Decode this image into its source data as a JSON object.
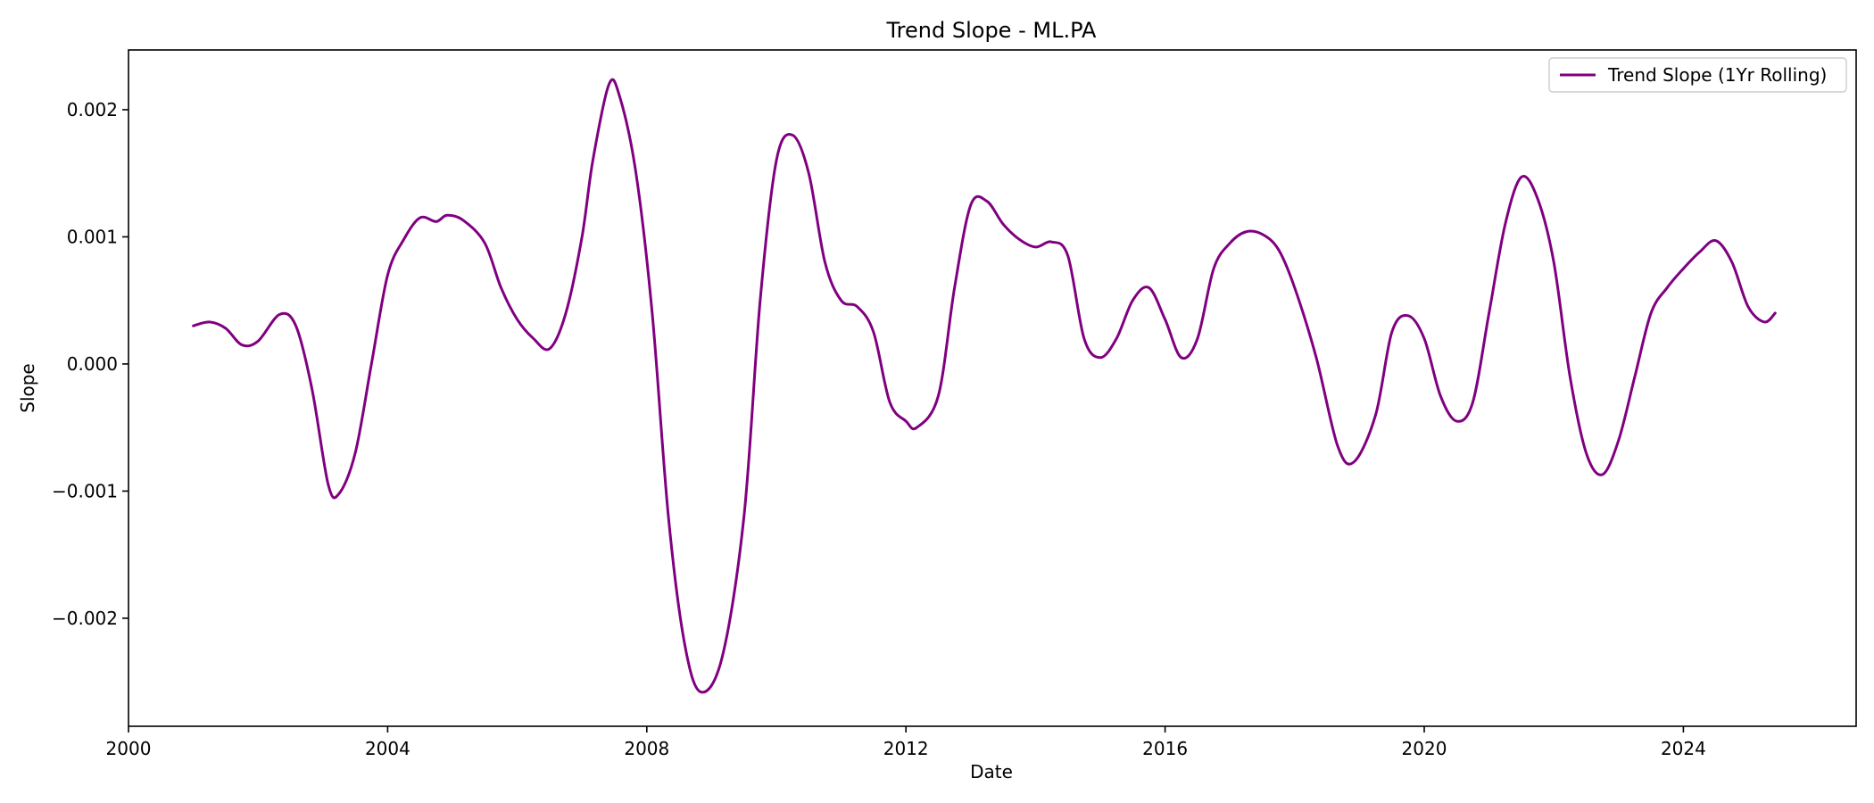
{
  "chart_data": {
    "type": "line",
    "title": "Trend Slope - ML.PA",
    "xlabel": "Date",
    "ylabel": "Slope",
    "xlim": [
      "2000-01-01",
      "2026-09-01"
    ],
    "ylim": [
      -0.00285,
      0.00247
    ],
    "x_ticks": [
      2000,
      2004,
      2008,
      2012,
      2016,
      2020,
      2024
    ],
    "y_ticks": [
      -0.002,
      -0.001,
      0.0,
      0.001,
      0.002
    ],
    "y_tick_labels": [
      "−0.002",
      "−0.001",
      "0.000",
      "0.001",
      "0.002"
    ],
    "grid": false,
    "legend_position": "top-right",
    "series": [
      {
        "name": "Trend Slope (1Yr Rolling)",
        "color": "#800080",
        "points": [
          [
            "2001-01",
            0.0003
          ],
          [
            "2001-04",
            0.00033
          ],
          [
            "2001-07",
            0.00028
          ],
          [
            "2001-10",
            0.00015
          ],
          [
            "2002-01",
            0.00018
          ],
          [
            "2002-05",
            0.00039
          ],
          [
            "2002-08",
            0.0003
          ],
          [
            "2002-11",
            -0.0002
          ],
          [
            "2003-02",
            -0.00095
          ],
          [
            "2003-04",
            -0.00102
          ],
          [
            "2003-07",
            -0.0007
          ],
          [
            "2003-10",
            0.0
          ],
          [
            "2004-01",
            0.0007
          ],
          [
            "2004-04",
            0.00098
          ],
          [
            "2004-07",
            0.00115
          ],
          [
            "2004-10",
            0.00112
          ],
          [
            "2004-12",
            0.00117
          ],
          [
            "2005-03",
            0.00113
          ],
          [
            "2005-07",
            0.00095
          ],
          [
            "2005-10",
            0.0006
          ],
          [
            "2006-01",
            0.00035
          ],
          [
            "2006-04",
            0.0002
          ],
          [
            "2006-07",
            0.00012
          ],
          [
            "2006-10",
            0.0004
          ],
          [
            "2007-01",
            0.001
          ],
          [
            "2007-03",
            0.0016
          ],
          [
            "2007-06",
            0.0022
          ],
          [
            "2007-08",
            0.0021
          ],
          [
            "2007-11",
            0.0015
          ],
          [
            "2008-02",
            0.0004
          ],
          [
            "2008-05",
            -0.0012
          ],
          [
            "2008-08",
            -0.0022
          ],
          [
            "2008-11",
            -0.00258
          ],
          [
            "2009-03",
            -0.0023
          ],
          [
            "2009-07",
            -0.0012
          ],
          [
            "2009-10",
            0.0005
          ],
          [
            "2010-01",
            0.0016
          ],
          [
            "2010-04",
            0.0018
          ],
          [
            "2010-07",
            0.0015
          ],
          [
            "2010-10",
            0.0008
          ],
          [
            "2011-01",
            0.0005
          ],
          [
            "2011-04",
            0.00045
          ],
          [
            "2011-07",
            0.00025
          ],
          [
            "2011-10",
            -0.0003
          ],
          [
            "2012-01",
            -0.00045
          ],
          [
            "2012-03",
            -0.0005
          ],
          [
            "2012-07",
            -0.00025
          ],
          [
            "2012-10",
            0.0006
          ],
          [
            "2013-01",
            0.00125
          ],
          [
            "2013-04",
            0.00128
          ],
          [
            "2013-07",
            0.0011
          ],
          [
            "2013-10",
            0.00098
          ],
          [
            "2014-01",
            0.00092
          ],
          [
            "2014-04",
            0.00096
          ],
          [
            "2014-07",
            0.00085
          ],
          [
            "2014-10",
            0.0002
          ],
          [
            "2015-01",
            5e-05
          ],
          [
            "2015-04",
            0.0002
          ],
          [
            "2015-07",
            0.0005
          ],
          [
            "2015-10",
            0.0006
          ],
          [
            "2016-01",
            0.00035
          ],
          [
            "2016-04",
            5e-05
          ],
          [
            "2016-07",
            0.0002
          ],
          [
            "2016-10",
            0.00075
          ],
          [
            "2017-01",
            0.00095
          ],
          [
            "2017-04",
            0.00104
          ],
          [
            "2017-07",
            0.00102
          ],
          [
            "2017-10",
            0.0009
          ],
          [
            "2018-01",
            0.0006
          ],
          [
            "2018-05",
            5e-05
          ],
          [
            "2018-09",
            -0.00065
          ],
          [
            "2018-12",
            -0.00077
          ],
          [
            "2019-04",
            -0.0004
          ],
          [
            "2019-07",
            0.00025
          ],
          [
            "2019-10",
            0.00038
          ],
          [
            "2020-01",
            0.0002
          ],
          [
            "2020-04",
            -0.00025
          ],
          [
            "2020-07",
            -0.00045
          ],
          [
            "2020-10",
            -0.0003
          ],
          [
            "2021-01",
            0.0004
          ],
          [
            "2021-04",
            0.0011
          ],
          [
            "2021-07",
            0.00147
          ],
          [
            "2021-10",
            0.0013
          ],
          [
            "2022-01",
            0.0008
          ],
          [
            "2022-04",
            -0.0001
          ],
          [
            "2022-07",
            -0.0007
          ],
          [
            "2022-10",
            -0.00087
          ],
          [
            "2023-01",
            -0.0006
          ],
          [
            "2023-04",
            -0.0001
          ],
          [
            "2023-07",
            0.0004
          ],
          [
            "2023-10",
            0.0006
          ],
          [
            "2024-01",
            0.00075
          ],
          [
            "2024-04",
            0.00088
          ],
          [
            "2024-07",
            0.00097
          ],
          [
            "2024-10",
            0.0008
          ],
          [
            "2025-01",
            0.00045
          ],
          [
            "2025-04",
            0.00033
          ],
          [
            "2025-06",
            0.0004
          ]
        ]
      }
    ]
  }
}
